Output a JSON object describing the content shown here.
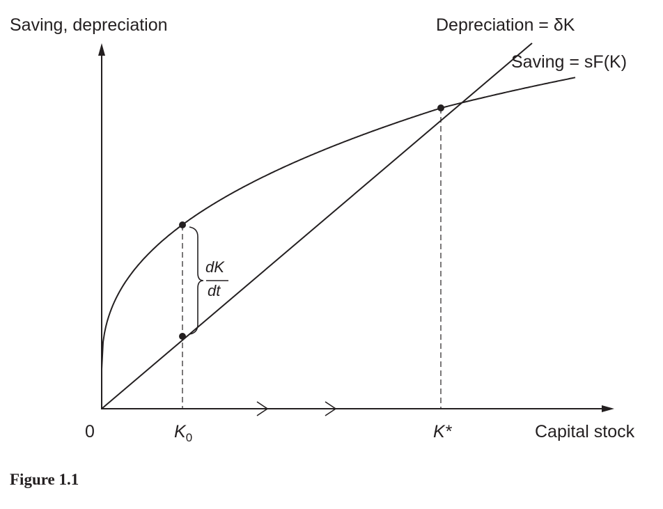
{
  "y_axis_label": "Saving, depreciation",
  "x_axis_label": "Capital stock",
  "origin_label": "0",
  "depreciation_label": "Depreciation = δK",
  "saving_label": "Saving = sF(K)",
  "k0_label": "K",
  "k0_subscript": "0",
  "kstar_label": "K*",
  "gap_numerator": "dK",
  "gap_denominator": "dt",
  "caption": "Figure 1.1"
}
